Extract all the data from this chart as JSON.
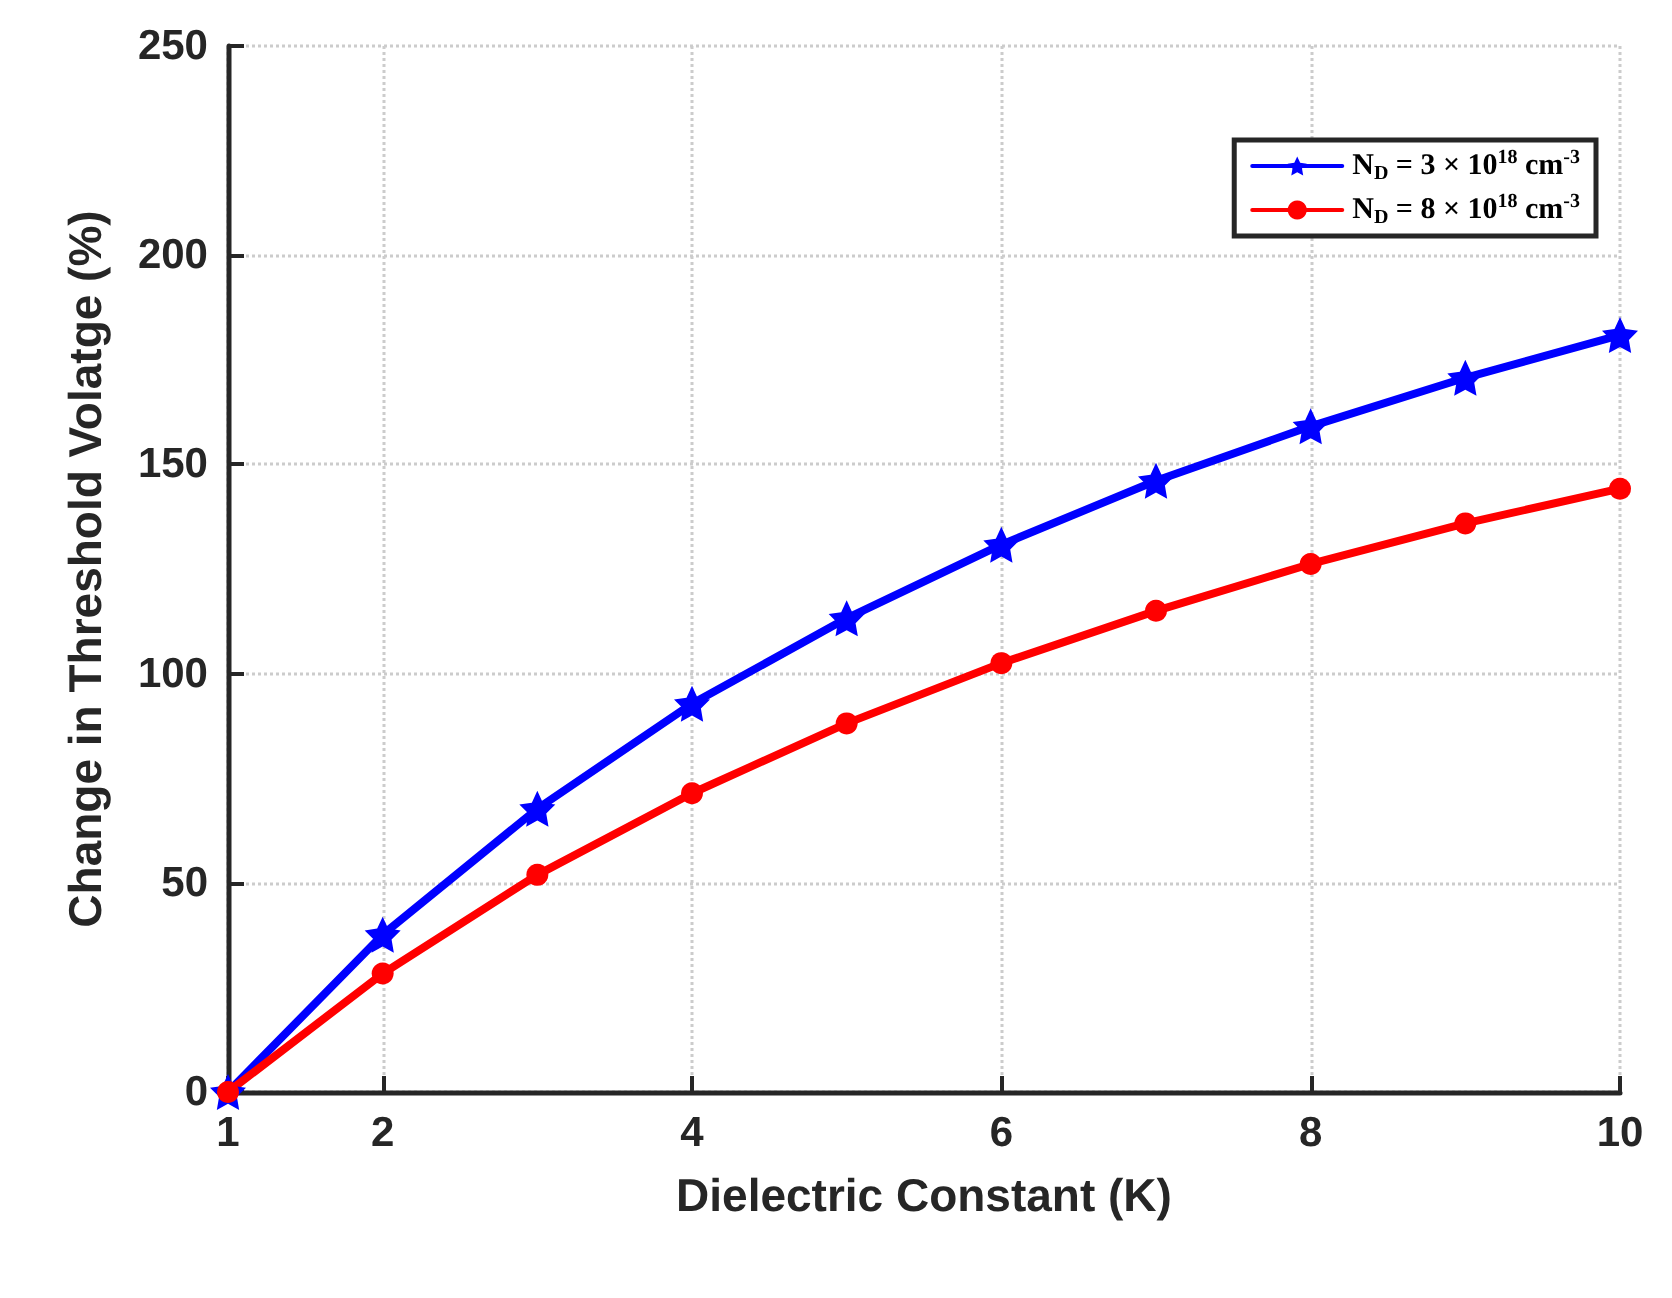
{
  "chart_data": {
    "type": "line",
    "xlabel": "Dielectric Constant (K)",
    "ylabel": "Change in Threshold Volatge (%)",
    "x": [
      1,
      2,
      3,
      4,
      5,
      6,
      7,
      8,
      9,
      10
    ],
    "series": [
      {
        "name": "N$_{D}$ = 3 × 10$^{18}$ cm$^{-3}$",
        "color": "#0000ff",
        "marker": "star",
        "values": [
          0,
          37.6,
          67.7,
          92.8,
          113.2,
          130.8,
          146.1,
          159.1,
          170.7,
          180.9
        ]
      },
      {
        "name": "N$_{D}$ = 8 × 10$^{18}$ cm$^{-3}$",
        "color": "#ff0000",
        "marker": "circle",
        "values": [
          0,
          28.3,
          51.9,
          71.4,
          88.1,
          102.5,
          115.0,
          126.2,
          135.9,
          144.2
        ]
      }
    ],
    "xlim": [
      1,
      10
    ],
    "xticks": [
      1,
      2,
      4,
      6,
      8,
      10
    ],
    "ylim": [
      0,
      250
    ],
    "yticks": [
      0,
      50,
      100,
      150,
      200,
      250
    ],
    "grid": true,
    "legend": "top right",
    "line_style": "solid"
  }
}
